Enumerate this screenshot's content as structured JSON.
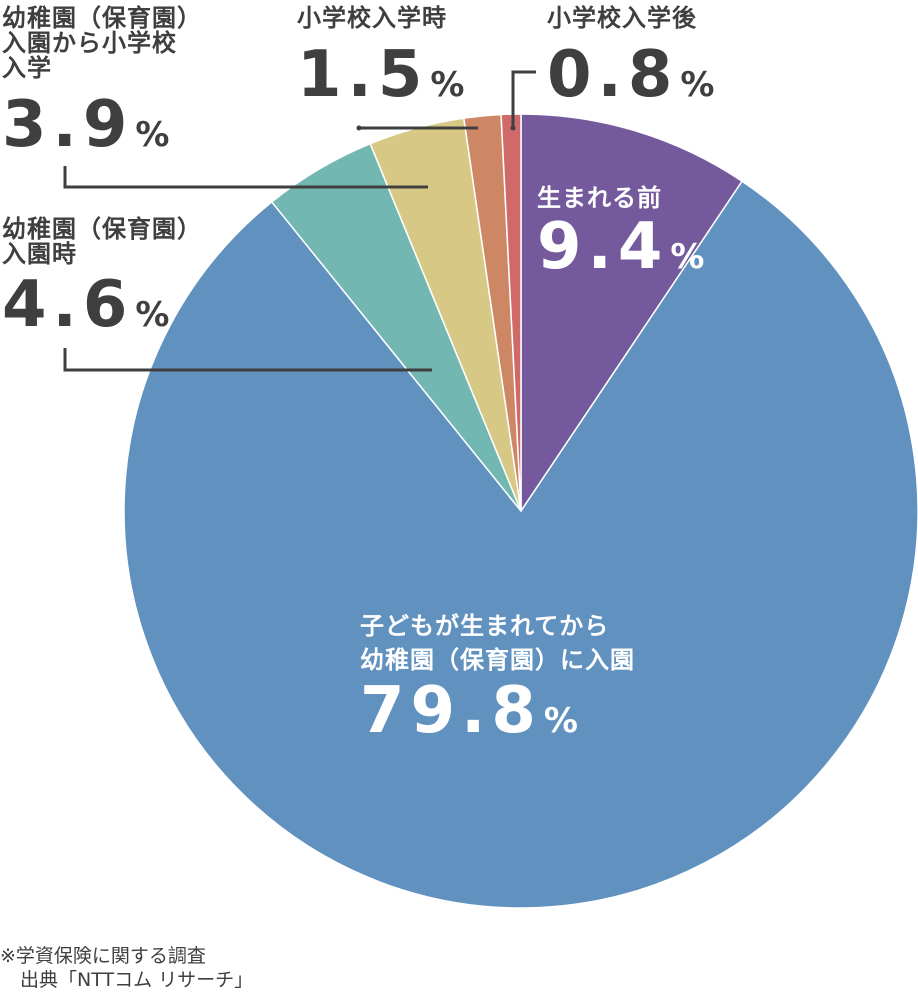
{
  "chart_data": {
    "type": "pie",
    "slices": [
      {
        "label": "生まれる前",
        "value": 9.4,
        "color": "#745a9c"
      },
      {
        "label": "子どもが生まれてから\n幼稚園（保育園）に入園",
        "value": 79.8,
        "color": "#6192bf"
      },
      {
        "label": "幼稚園（保育園）\n入園時",
        "value": 4.6,
        "color": "#72b7b1"
      },
      {
        "label": "幼稚園（保育園）\n入園から小学校\n入学",
        "value": 3.9,
        "color": "#d7c985"
      },
      {
        "label": "小学校入学時",
        "value": 1.5,
        "color": "#cd8765"
      },
      {
        "label": "小学校入学後",
        "value": 0.8,
        "color": "#cf6a68"
      }
    ],
    "value_suffix": "%"
  },
  "labels": {
    "before_birth": {
      "cat": "生まれる前",
      "num": "9.4",
      "unit": "%"
    },
    "after_birth": {
      "cat1": "子どもが生まれてから",
      "cat2": "幼稚園（保育園）に入園",
      "num": "79.8",
      "unit": "%"
    },
    "kinder_entry": {
      "cat1": "幼稚園（保育園）",
      "cat2": "入園時",
      "num": "4.6",
      "unit": "%"
    },
    "kinder_to_school": {
      "cat1": "幼稚園（保育園）",
      "cat2": "入園から小学校",
      "cat3": "入学",
      "num": "3.9",
      "unit": "%"
    },
    "school_entry": {
      "cat": "小学校入学時",
      "num": "1.5",
      "unit": "%"
    },
    "after_school": {
      "cat": "小学校入学後",
      "num": "0.8",
      "unit": "%"
    }
  },
  "footnote": {
    "line1": "※学資保険に関する調査",
    "line2": "出典「NTTコム リサーチ」"
  }
}
